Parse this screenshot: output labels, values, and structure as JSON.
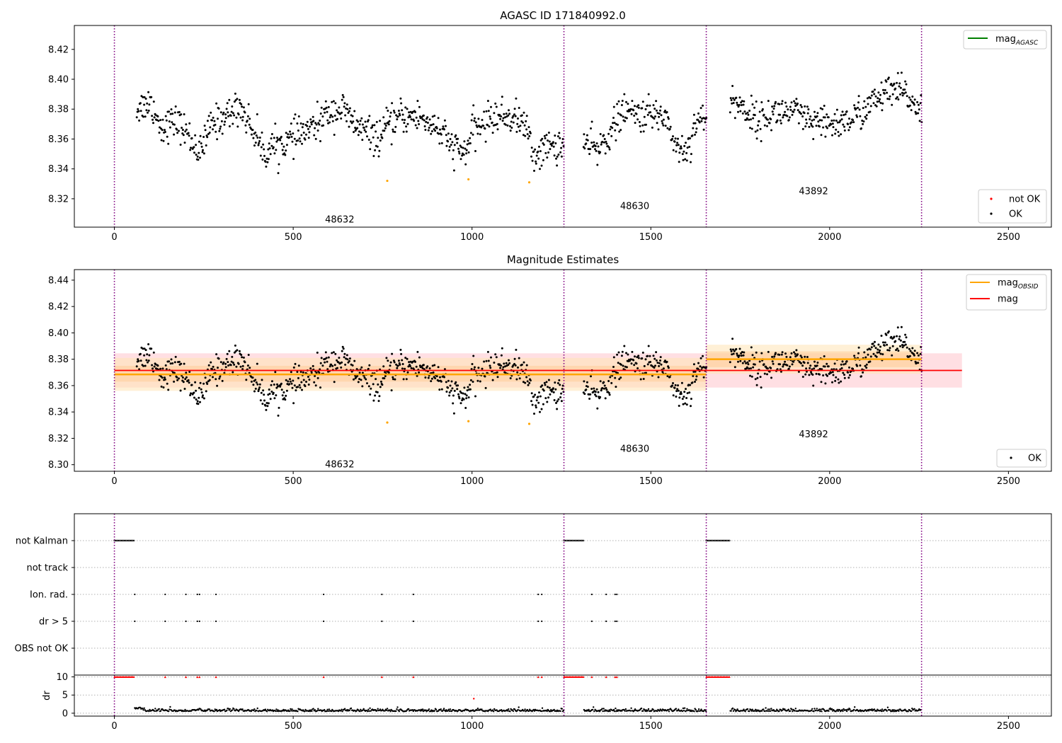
{
  "figure": {
    "title": "AGASC ID 171840992.0"
  },
  "colors": {
    "ok": "#000000",
    "not_ok": "#ff0000",
    "excluded": "#ffa500",
    "mag_line": "#ff0000",
    "mag_band": "#ffc0c8",
    "obsid_line": "#ffa500",
    "obsid_band": "#ffe4b5",
    "agasc_line": "#008000",
    "vline": "#800080",
    "grid": "#b0b0b0"
  },
  "chart_data": [
    {
      "id": "top",
      "type": "scatter",
      "title": "",
      "xlim": [
        -112,
        2620
      ],
      "ylim": [
        8.301,
        8.436
      ],
      "xticks": [
        0,
        500,
        1000,
        1500,
        2000,
        2500
      ],
      "yticks": [
        8.32,
        8.34,
        8.36,
        8.38,
        8.4,
        8.42
      ],
      "vlines": [
        0,
        1257,
        1655,
        2257
      ],
      "obsids": [
        {
          "label": "48632",
          "x": 630,
          "y": 8.306
        },
        {
          "label": "48630",
          "x": 1455,
          "y": 8.315
        },
        {
          "label": "43892",
          "x": 1955,
          "y": 8.325
        }
      ],
      "legend_top": {
        "position": "top-right",
        "entries": [
          {
            "name": "mag",
            "sub": "AGASC",
            "style": "line",
            "color": "#008000"
          }
        ]
      },
      "legend_bottom": {
        "position": "bottom-right",
        "entries": [
          {
            "name": "not OK",
            "style": "dot",
            "color": "#ff0000"
          },
          {
            "name": "OK",
            "style": "dot",
            "color": "#000000"
          }
        ]
      },
      "excluded_points": [
        [
          763,
          8.332
        ],
        [
          990,
          8.333
        ],
        [
          1160,
          8.331
        ]
      ],
      "series_profile": [
        [
          60,
          8.38
        ],
        [
          100,
          8.385
        ],
        [
          130,
          8.368
        ],
        [
          170,
          8.372
        ],
        [
          200,
          8.365
        ],
        [
          240,
          8.35
        ],
        [
          270,
          8.37
        ],
        [
          310,
          8.375
        ],
        [
          350,
          8.382
        ],
        [
          390,
          8.365
        ],
        [
          420,
          8.35
        ],
        [
          440,
          8.355
        ],
        [
          480,
          8.358
        ],
        [
          510,
          8.362
        ],
        [
          560,
          8.368
        ],
        [
          600,
          8.378
        ],
        [
          640,
          8.38
        ],
        [
          660,
          8.372
        ],
        [
          700,
          8.365
        ],
        [
          740,
          8.36
        ],
        [
          760,
          8.368
        ],
        [
          800,
          8.375
        ],
        [
          850,
          8.375
        ],
        [
          900,
          8.368
        ],
        [
          940,
          8.356
        ],
        [
          980,
          8.35
        ],
        [
          1000,
          8.365
        ],
        [
          1060,
          8.375
        ],
        [
          1110,
          8.375
        ],
        [
          1150,
          8.37
        ],
        [
          1170,
          8.348
        ],
        [
          1210,
          8.355
        ],
        [
          1257,
          8.356
        ],
        [
          1310,
          8.358
        ],
        [
          1350,
          8.352
        ],
        [
          1380,
          8.362
        ],
        [
          1420,
          8.378
        ],
        [
          1480,
          8.376
        ],
        [
          1540,
          8.376
        ],
        [
          1570,
          8.355
        ],
        [
          1600,
          8.352
        ],
        [
          1630,
          8.375
        ],
        [
          1655,
          8.37
        ],
        [
          1720,
          8.388
        ],
        [
          1760,
          8.38
        ],
        [
          1800,
          8.372
        ],
        [
          1850,
          8.378
        ],
        [
          1900,
          8.378
        ],
        [
          1950,
          8.37
        ],
        [
          2000,
          8.37
        ],
        [
          2050,
          8.372
        ],
        [
          2100,
          8.38
        ],
        [
          2150,
          8.39
        ],
        [
          2200,
          8.392
        ],
        [
          2257,
          8.38
        ]
      ],
      "gaps": [
        [
          1257,
          1310
        ],
        [
          1655,
          1720
        ]
      ]
    },
    {
      "id": "middle",
      "type": "scatter",
      "title": "Magnitude Estimates",
      "xlim": [
        -112,
        2620
      ],
      "ylim": [
        8.295,
        8.448
      ],
      "xticks": [
        0,
        500,
        1000,
        1500,
        2000,
        2500
      ],
      "yticks": [
        8.3,
        8.32,
        8.34,
        8.36,
        8.38,
        8.4,
        8.42,
        8.44
      ],
      "vlines": [
        0,
        1257,
        1655,
        2257
      ],
      "obsids": [
        {
          "label": "48632",
          "x": 630,
          "y": 8.3
        },
        {
          "label": "48630",
          "x": 1455,
          "y": 8.312
        },
        {
          "label": "43892",
          "x": 1955,
          "y": 8.323
        }
      ],
      "mag": {
        "value": 8.3715,
        "band": [
          8.3585,
          8.3845
        ],
        "x": [
          0,
          2370
        ]
      },
      "mag_obsid": [
        {
          "x": [
            0,
            1655
          ],
          "value": 8.3685,
          "band": [
            8.356,
            8.381
          ],
          "inner": [
            8.363,
            8.375
          ]
        },
        {
          "x": [
            1655,
            2257
          ],
          "value": 8.38,
          "band": [
            8.369,
            8.391
          ],
          "inner": [
            8.374,
            8.386
          ]
        }
      ],
      "legend_top": {
        "position": "top-right",
        "entries": [
          {
            "name": "mag",
            "sub": "OBSID",
            "style": "line",
            "color": "#ffa500"
          },
          {
            "name": "mag",
            "sub": "",
            "style": "line",
            "color": "#ff0000"
          }
        ]
      },
      "legend_bottom": {
        "position": "bottom-right",
        "entries": [
          {
            "name": "OK",
            "style": "dot",
            "color": "#000000"
          }
        ]
      },
      "excluded_points": [
        [
          763,
          8.332
        ],
        [
          990,
          8.333
        ],
        [
          1160,
          8.331
        ]
      ]
    },
    {
      "id": "flags",
      "type": "scatter",
      "xlim": [
        -112,
        2620
      ],
      "categories": [
        "OBS not OK",
        "dr > 5",
        "Ion. rad.",
        "not track",
        "not Kalman"
      ],
      "not_kalman_ranges": [
        [
          0,
          55
        ],
        [
          1257,
          1312
        ],
        [
          1655,
          1722
        ]
      ],
      "ion_rad_x": [
        57,
        142,
        200,
        232,
        238,
        284,
        585,
        748,
        836,
        1185,
        1195,
        1335,
        1375,
        1400,
        1405
      ],
      "dr5_x": [
        57,
        142,
        200,
        232,
        238,
        284,
        585,
        748,
        836,
        1185,
        1195,
        1335,
        1375,
        1400,
        1405
      ],
      "vlines": [
        0,
        1257,
        1655,
        2257
      ]
    },
    {
      "id": "dr",
      "type": "scatter",
      "xlim": [
        -112,
        2620
      ],
      "ylim": [
        -0.8,
        10.5
      ],
      "yticks": [
        0,
        5,
        10
      ],
      "ylabel": "dr",
      "xticks": [
        0,
        500,
        1000,
        1500,
        2000,
        2500
      ],
      "capped_ranges": [
        [
          0,
          57
        ],
        [
          1257,
          1312
        ],
        [
          1655,
          1722
        ]
      ],
      "capped_x": [
        142,
        200,
        232,
        238,
        284,
        585,
        748,
        836,
        1185,
        1195,
        1335,
        1375,
        1400,
        1405
      ],
      "outliers": [
        [
          1005,
          4.0
        ]
      ],
      "vlines": [
        0,
        1257,
        1655,
        2257
      ]
    }
  ]
}
